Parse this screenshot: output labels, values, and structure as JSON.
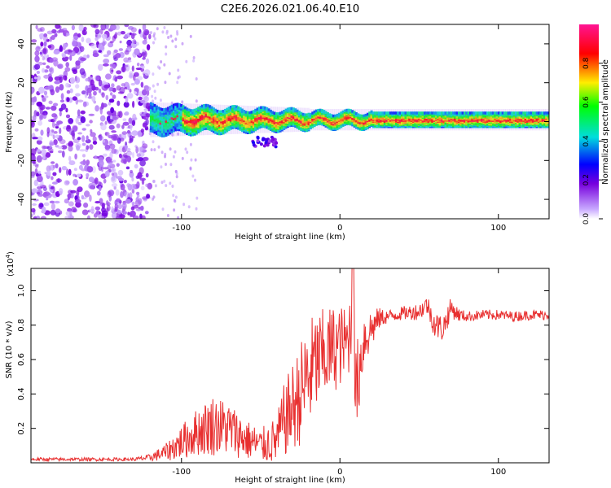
{
  "figure_title": "C2E6.2026.021.06.40.E10",
  "chart_data": [
    {
      "type": "heatmap",
      "title": "C2E6.2026.021.06.40.E10",
      "xlabel": "Height of straight line (km)",
      "ylabel": "Frequency (Hz)",
      "xlim": [
        -195,
        132
      ],
      "ylim": [
        -50,
        50
      ],
      "xticks": [
        -100,
        0,
        100
      ],
      "yticks": [
        -40,
        -20,
        0,
        20,
        40
      ],
      "colorbar": {
        "label": "Normalized spectral amplitude",
        "range": [
          0,
          1
        ],
        "ticks": [
          0.0,
          0.2,
          0.4,
          0.6,
          0.8
        ],
        "colormap": [
          "#c8c8ff",
          "#7700dd",
          "#0000ff",
          "#00dddd",
          "#00ff00",
          "#ffee00",
          "#ff0000",
          "#ff1493"
        ]
      },
      "regions": [
        {
          "name": "noise",
          "x_range": [
            -195,
            -120
          ],
          "freq_range": [
            -50,
            50
          ],
          "amplitude": 0.1
        },
        {
          "name": "onset",
          "x_range": [
            -120,
            -100
          ],
          "freq_range": [
            -8,
            8
          ],
          "amplitude": 0.3
        },
        {
          "name": "sidelobe",
          "x_range": [
            -55,
            -40
          ],
          "freq_range": [
            -13,
            -8
          ],
          "amplitude": 0.15
        },
        {
          "name": "signal",
          "x_range": [
            -100,
            132
          ],
          "center_freq": 1,
          "amplitude_range": [
            0.4,
            0.95
          ]
        }
      ]
    },
    {
      "type": "line",
      "xlabel": "Height of straight line (km)",
      "ylabel": "SNR (10 * v/v)",
      "y_multiplier": "(x10",
      "y_multiplier_exp": "4",
      "xlim": [
        -195,
        132
      ],
      "ylim": [
        0,
        1.13
      ],
      "xticks": [
        -100,
        0,
        100
      ],
      "yticks": [
        0.2,
        0.4,
        0.6,
        0.8,
        1.0
      ],
      "series": [
        {
          "name": "SNR",
          "color": "#e83030",
          "x": [
            -195,
            -130,
            -120,
            -110,
            -100,
            -90,
            -80,
            -70,
            -60,
            -50,
            -40,
            -35,
            -30,
            -25,
            -20,
            -15,
            -10,
            -5,
            0,
            5,
            8,
            10,
            15,
            20,
            25,
            30,
            40,
            50,
            55,
            60,
            65,
            70,
            75,
            80,
            90,
            100,
            110,
            120,
            132
          ],
          "y": [
            0.02,
            0.02,
            0.03,
            0.06,
            0.12,
            0.18,
            0.22,
            0.2,
            0.14,
            0.1,
            0.13,
            0.25,
            0.32,
            0.4,
            0.5,
            0.58,
            0.62,
            0.66,
            0.68,
            0.7,
            0.85,
            0.4,
            0.72,
            0.78,
            0.84,
            0.85,
            0.87,
            0.88,
            0.92,
            0.8,
            0.78,
            0.9,
            0.86,
            0.85,
            0.86,
            0.86,
            0.85,
            0.86,
            0.86
          ],
          "noise_amplitude": [
            0.01,
            0.01,
            0.02,
            0.05,
            0.1,
            0.14,
            0.18,
            0.16,
            0.12,
            0.1,
            0.14,
            0.22,
            0.26,
            0.3,
            0.34,
            0.3,
            0.28,
            0.26,
            0.24,
            0.2,
            0.3,
            0.28,
            0.18,
            0.12,
            0.06,
            0.04,
            0.04,
            0.05,
            0.06,
            0.08,
            0.08,
            0.06,
            0.04,
            0.03,
            0.03,
            0.03,
            0.03,
            0.03,
            0.03
          ]
        }
      ]
    }
  ]
}
